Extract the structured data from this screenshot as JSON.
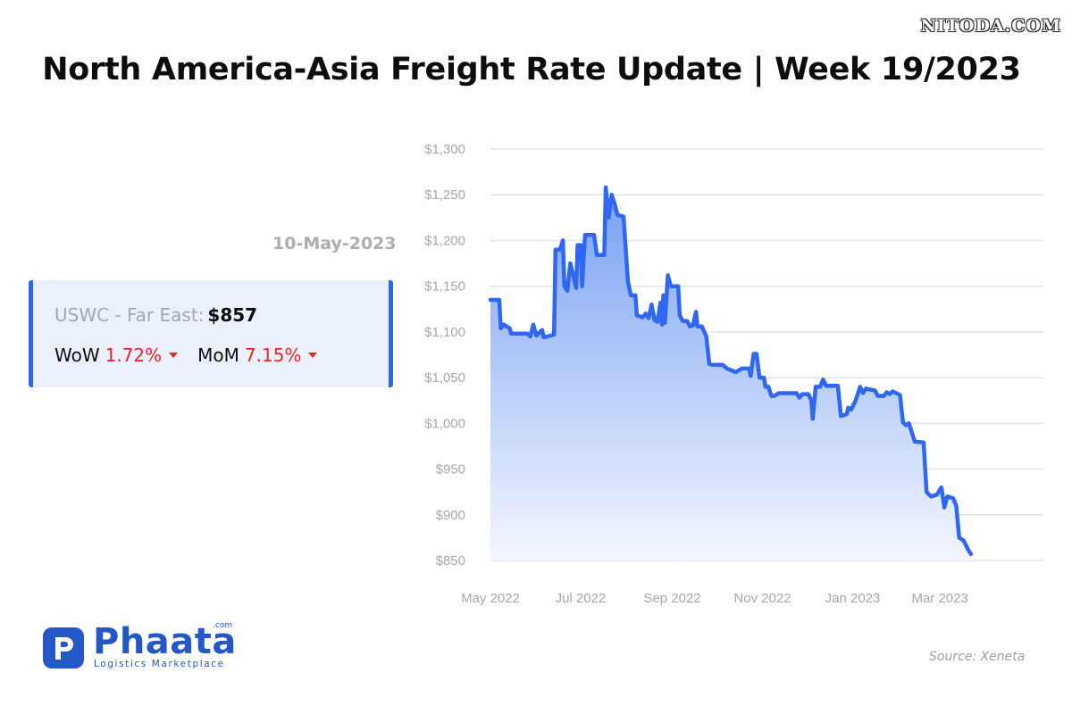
{
  "watermark": "NITODA.COM",
  "title": "North America-Asia Freight Rate Update | Week 19/2023",
  "date_label": "10-May-2023",
  "rate_card": {
    "route": "USWC - Far East:",
    "price": "$857",
    "wow_label": "WoW",
    "wow_value": "1.72%",
    "mom_label": "MoM",
    "mom_value": "7.15%"
  },
  "logo": {
    "name": "Phaata",
    "com": ".com",
    "tagline": "Logistics Marketplace"
  },
  "source": "Source: Xeneta",
  "colors": {
    "line": "#2f66f2",
    "area_top": "#6f9bf2",
    "area_bottom": "#f1f5fe",
    "grid": "#dfe3ea",
    "tick_label": "#a3a8b0",
    "down_change": "#ee2222"
  },
  "chart_data": {
    "type": "area",
    "xlabel": "",
    "ylabel": "",
    "ylim": [
      850,
      1300
    ],
    "xlim": [
      "2022-05-01",
      "2023-05-10"
    ],
    "grid": true,
    "y_ticks": [
      1300,
      1250,
      1200,
      1150,
      1100,
      1050,
      1000,
      950,
      900,
      850
    ],
    "y_tick_labels": [
      "$1,300",
      "$1,250",
      "$1,200",
      "$1,150",
      "$1,100",
      "$1,050",
      "$1,000",
      "$950",
      "$900",
      "$850"
    ],
    "x_ticks": [
      {
        "date": "2022-05-01",
        "label": "May 2022"
      },
      {
        "date": "2022-07-01",
        "label": "Jul 2022"
      },
      {
        "date": "2022-09-01",
        "label": "Sep 2022"
      },
      {
        "date": "2022-11-01",
        "label": "Nov 2022"
      },
      {
        "date": "2023-01-01",
        "label": "Jan 2023"
      },
      {
        "date": "2023-03-01",
        "label": "Mar 2023"
      }
    ],
    "series": [
      {
        "points": [
          [
            "2022-05-01",
            1135
          ],
          [
            "2022-05-07",
            1135
          ],
          [
            "2022-05-08",
            1104
          ],
          [
            "2022-05-10",
            1108
          ],
          [
            "2022-05-14",
            1104
          ],
          [
            "2022-05-15",
            1098
          ],
          [
            "2022-05-26",
            1098
          ],
          [
            "2022-05-28",
            1095
          ],
          [
            "2022-05-30",
            1108
          ],
          [
            "2022-06-01",
            1096
          ],
          [
            "2022-06-05",
            1102
          ],
          [
            "2022-06-06",
            1094
          ],
          [
            "2022-06-13",
            1097
          ],
          [
            "2022-06-14",
            1190
          ],
          [
            "2022-06-17",
            1190
          ],
          [
            "2022-06-19",
            1200
          ],
          [
            "2022-06-20",
            1150
          ],
          [
            "2022-06-22",
            1145
          ],
          [
            "2022-06-24",
            1175
          ],
          [
            "2022-06-26",
            1162
          ],
          [
            "2022-06-28",
            1148
          ],
          [
            "2022-06-29",
            1195
          ],
          [
            "2022-07-01",
            1195
          ],
          [
            "2022-07-02",
            1150
          ],
          [
            "2022-07-04",
            1206
          ],
          [
            "2022-07-10",
            1206
          ],
          [
            "2022-07-12",
            1184
          ],
          [
            "2022-07-17",
            1184
          ],
          [
            "2022-07-18",
            1258
          ],
          [
            "2022-07-20",
            1225
          ],
          [
            "2022-07-22",
            1250
          ],
          [
            "2022-07-24",
            1240
          ],
          [
            "2022-07-26",
            1228
          ],
          [
            "2022-07-30",
            1226
          ],
          [
            "2022-08-02",
            1155
          ],
          [
            "2022-08-04",
            1140
          ],
          [
            "2022-08-07",
            1140
          ],
          [
            "2022-08-08",
            1118
          ],
          [
            "2022-08-12",
            1116
          ],
          [
            "2022-08-14",
            1120
          ],
          [
            "2022-08-16",
            1115
          ],
          [
            "2022-08-18",
            1130
          ],
          [
            "2022-08-20",
            1113
          ],
          [
            "2022-08-22",
            1111
          ],
          [
            "2022-08-24",
            1132
          ],
          [
            "2022-08-25",
            1108
          ],
          [
            "2022-08-26",
            1140
          ],
          [
            "2022-08-27",
            1110
          ],
          [
            "2022-08-29",
            1162
          ],
          [
            "2022-08-31",
            1150
          ],
          [
            "2022-09-05",
            1150
          ],
          [
            "2022-09-06",
            1118
          ],
          [
            "2022-09-08",
            1112
          ],
          [
            "2022-09-11",
            1112
          ],
          [
            "2022-09-13",
            1106
          ],
          [
            "2022-09-15",
            1107
          ],
          [
            "2022-09-17",
            1122
          ],
          [
            "2022-09-18",
            1106
          ],
          [
            "2022-09-21",
            1106
          ],
          [
            "2022-09-24",
            1095
          ],
          [
            "2022-09-26",
            1065
          ],
          [
            "2022-09-28",
            1064
          ],
          [
            "2022-10-05",
            1064
          ],
          [
            "2022-10-08",
            1060
          ],
          [
            "2022-10-14",
            1056
          ],
          [
            "2022-10-18",
            1060
          ],
          [
            "2022-10-23",
            1060
          ],
          [
            "2022-10-24",
            1052
          ],
          [
            "2022-10-26",
            1076
          ],
          [
            "2022-10-28",
            1076
          ],
          [
            "2022-10-30",
            1050
          ],
          [
            "2022-11-02",
            1050
          ],
          [
            "2022-11-03",
            1040
          ],
          [
            "2022-11-05",
            1040
          ],
          [
            "2022-11-07",
            1030
          ],
          [
            "2022-11-09",
            1030
          ],
          [
            "2022-11-12",
            1033
          ],
          [
            "2022-11-24",
            1033
          ],
          [
            "2022-11-26",
            1028
          ],
          [
            "2022-11-28",
            1032
          ],
          [
            "2022-12-02",
            1032
          ],
          [
            "2022-12-04",
            1025
          ],
          [
            "2022-12-05",
            1005
          ],
          [
            "2022-12-07",
            1040
          ],
          [
            "2022-12-10",
            1040
          ],
          [
            "2022-12-12",
            1048
          ],
          [
            "2022-12-14",
            1041
          ],
          [
            "2022-12-22",
            1041
          ],
          [
            "2022-12-24",
            1008
          ],
          [
            "2022-12-28",
            1010
          ],
          [
            "2022-12-29",
            1017
          ],
          [
            "2022-12-31",
            1015
          ],
          [
            "2023-01-03",
            1025
          ],
          [
            "2023-01-04",
            1030
          ],
          [
            "2023-01-06",
            1040
          ],
          [
            "2023-01-08",
            1033
          ],
          [
            "2023-01-10",
            1038
          ],
          [
            "2023-01-16",
            1036
          ],
          [
            "2023-01-18",
            1030
          ],
          [
            "2023-01-22",
            1030
          ],
          [
            "2023-01-24",
            1034
          ],
          [
            "2023-01-26",
            1032
          ],
          [
            "2023-01-28",
            1035
          ],
          [
            "2023-02-02",
            1031
          ],
          [
            "2023-02-04",
            1001
          ],
          [
            "2023-02-06",
            998
          ],
          [
            "2023-02-08",
            1000
          ],
          [
            "2023-02-10",
            990
          ],
          [
            "2023-02-12",
            980
          ],
          [
            "2023-02-18",
            979
          ],
          [
            "2023-02-20",
            925
          ],
          [
            "2023-02-23",
            920
          ],
          [
            "2023-02-27",
            922
          ],
          [
            "2023-03-02",
            930
          ],
          [
            "2023-03-04",
            908
          ],
          [
            "2023-03-06",
            920
          ],
          [
            "2023-03-10",
            918
          ],
          [
            "2023-03-12",
            910
          ],
          [
            "2023-03-14",
            875
          ],
          [
            "2023-03-17",
            872
          ],
          [
            "2023-03-20",
            862
          ],
          [
            "2023-03-22",
            857
          ]
        ]
      }
    ]
  }
}
